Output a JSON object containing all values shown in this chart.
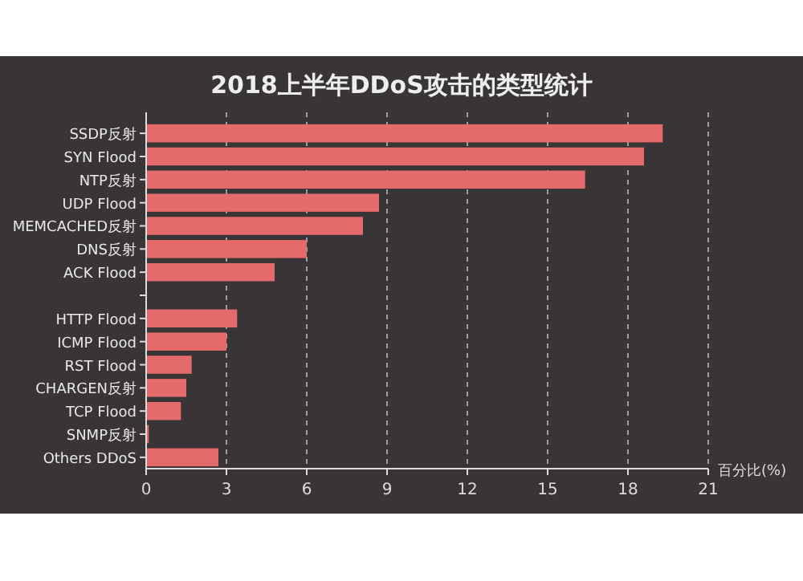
{
  "chart_data": {
    "type": "bar",
    "orientation": "horizontal",
    "title": "2018上半年DDoS攻击的类型统计",
    "xlabel": "百分比(%)",
    "categories": [
      "SSDP反射",
      "SYN Flood",
      "NTP反射",
      "UDP Flood",
      "MEMCACHED反射",
      "DNS反射",
      "ACK Flood",
      null,
      "HTTP Flood",
      "ICMP Flood",
      "RST Flood",
      "CHARGEN反射",
      "TCP Flood",
      "SNMP反射",
      "Others DDoS"
    ],
    "values": [
      19.3,
      18.6,
      16.4,
      8.7,
      8.1,
      6.0,
      4.8,
      null,
      3.4,
      3.0,
      1.7,
      1.5,
      1.3,
      0.1,
      2.7
    ],
    "color": "#e46a6c",
    "xlim": [
      0,
      21
    ],
    "xticks": [
      0,
      3,
      6,
      9,
      12,
      15,
      18,
      21
    ],
    "grid": "x"
  }
}
